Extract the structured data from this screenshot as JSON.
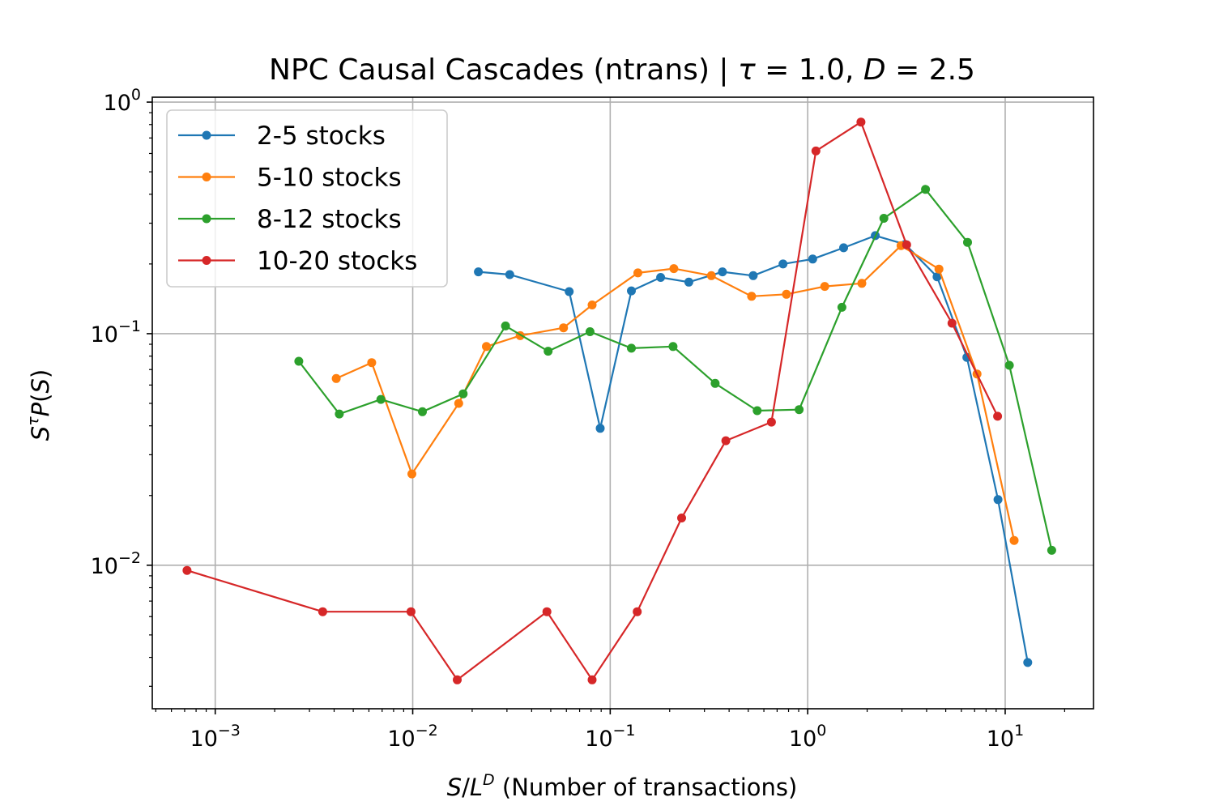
{
  "chart_data": {
    "type": "line",
    "title": "NPC Causal Cascades (ntrans) | τ = 1.0, D = 2.5",
    "xlabel": "S/L^D (Number of transactions)",
    "ylabel": "S^τ P(S)",
    "xscale": "log",
    "yscale": "log",
    "xlim": [
      0.00048,
      28
    ],
    "ylim": [
      0.0024,
      1.05
    ],
    "grid": true,
    "legend_position": "top-left",
    "x_ticks": [
      {
        "mant": "10",
        "exp": "−3"
      },
      {
        "mant": "10",
        "exp": "−2"
      },
      {
        "mant": "10",
        "exp": "−1"
      },
      {
        "mant": "10",
        "exp": "0"
      },
      {
        "mant": "10",
        "exp": "1"
      }
    ],
    "y_ticks": [
      {
        "mant": "10",
        "exp": "−2"
      },
      {
        "mant": "10",
        "exp": "−1"
      },
      {
        "mant": "10",
        "exp": "0"
      }
    ],
    "series": [
      {
        "name": "2-5 stocks",
        "color": "#1f77b4",
        "points": [
          [
            0.0215,
            0.185
          ],
          [
            0.031,
            0.18
          ],
          [
            0.062,
            0.152
          ],
          [
            0.089,
            0.039
          ],
          [
            0.128,
            0.153
          ],
          [
            0.18,
            0.175
          ],
          [
            0.25,
            0.167
          ],
          [
            0.37,
            0.185
          ],
          [
            0.53,
            0.178
          ],
          [
            0.75,
            0.2
          ],
          [
            1.06,
            0.21
          ],
          [
            1.52,
            0.235
          ],
          [
            2.2,
            0.265
          ],
          [
            3.12,
            0.243
          ],
          [
            4.52,
            0.176
          ],
          [
            6.4,
            0.079
          ],
          [
            9.2,
            0.0192
          ],
          [
            13.0,
            0.0038
          ]
        ]
      },
      {
        "name": "5-10 stocks",
        "color": "#ff7f0e",
        "points": [
          [
            0.0041,
            0.064
          ],
          [
            0.0062,
            0.075
          ],
          [
            0.0099,
            0.0248
          ],
          [
            0.0171,
            0.05
          ],
          [
            0.0236,
            0.088
          ],
          [
            0.035,
            0.098
          ],
          [
            0.058,
            0.106
          ],
          [
            0.081,
            0.133
          ],
          [
            0.138,
            0.183
          ],
          [
            0.21,
            0.191
          ],
          [
            0.325,
            0.178
          ],
          [
            0.52,
            0.145
          ],
          [
            0.78,
            0.148
          ],
          [
            1.22,
            0.16
          ],
          [
            1.88,
            0.165
          ],
          [
            2.97,
            0.24
          ],
          [
            4.62,
            0.19
          ],
          [
            7.2,
            0.067
          ],
          [
            11.1,
            0.0128
          ]
        ]
      },
      {
        "name": "8-12 stocks",
        "color": "#2ca02c",
        "points": [
          [
            0.00265,
            0.076
          ],
          [
            0.00425,
            0.045
          ],
          [
            0.0069,
            0.052
          ],
          [
            0.0112,
            0.046
          ],
          [
            0.018,
            0.055
          ],
          [
            0.0295,
            0.108
          ],
          [
            0.0485,
            0.084
          ],
          [
            0.079,
            0.102
          ],
          [
            0.128,
            0.0865
          ],
          [
            0.208,
            0.088
          ],
          [
            0.34,
            0.061
          ],
          [
            0.555,
            0.0465
          ],
          [
            0.905,
            0.047
          ],
          [
            1.49,
            0.13
          ],
          [
            2.43,
            0.315
          ],
          [
            3.95,
            0.42
          ],
          [
            6.45,
            0.248
          ],
          [
            10.5,
            0.073
          ],
          [
            17.2,
            0.0116
          ]
        ]
      },
      {
        "name": "10-20 stocks",
        "color": "#d62728",
        "points": [
          [
            0.00072,
            0.0095
          ],
          [
            0.0035,
            0.0063
          ],
          [
            0.0098,
            0.0063
          ],
          [
            0.0168,
            0.0032
          ],
          [
            0.0478,
            0.0063
          ],
          [
            0.081,
            0.0032
          ],
          [
            0.137,
            0.0063
          ],
          [
            0.23,
            0.016
          ],
          [
            0.385,
            0.0345
          ],
          [
            0.655,
            0.0415
          ],
          [
            1.1,
            0.615
          ],
          [
            1.86,
            0.82
          ],
          [
            3.17,
            0.242
          ],
          [
            5.38,
            0.111
          ],
          [
            9.15,
            0.044
          ]
        ]
      }
    ]
  }
}
